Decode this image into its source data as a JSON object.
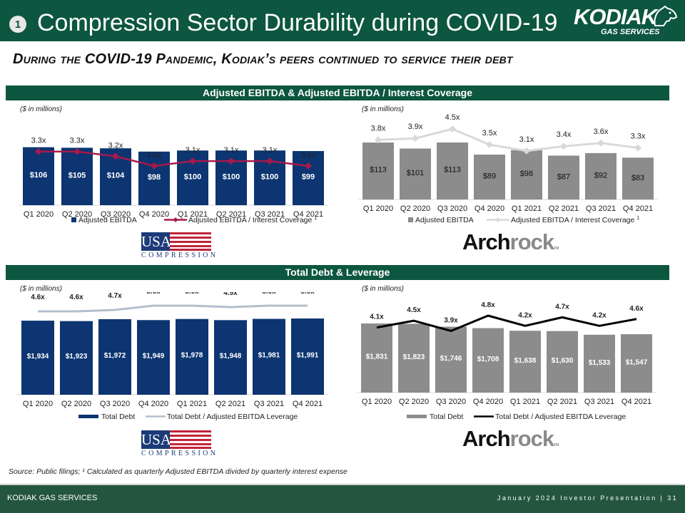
{
  "header": {
    "section_number": "1",
    "title": "Compression Sector Durability during COVID-19",
    "logo_main": "KODIAK",
    "logo_sub": "GAS SERVICES"
  },
  "subtitle": "During the COVID-19 Pandemic, Kodiak’s peers continued to service their debt",
  "sections": {
    "ebitda_header": "Adjusted EBITDA & Adjusted EBITDA / Interest Coverage",
    "debt_header": "Total Debt & Leverage"
  },
  "units_label": "($ in millions)",
  "brands": {
    "usa_box": "USA",
    "usa_sub": "COMPRESSION",
    "archrock_a": "Arch",
    "archrock_b": "rock",
    "archrock_tm": "TM"
  },
  "colors": {
    "green": "#0d5640",
    "navy": "#0c3571",
    "crimson": "#a8194a",
    "gray_bar": "#8c8c8c",
    "light_line": "#d9d9d9",
    "steel_line": "#b4bfce",
    "black_line": "#000000"
  },
  "chart_data": [
    {
      "id": "usac_ebitda",
      "type": "bar",
      "company": "USA Compression",
      "categories": [
        "Q1 2020",
        "Q2 2020",
        "Q3 2020",
        "Q4 2020",
        "Q1 2021",
        "Q2 2021",
        "Q3 2021",
        "Q4 2021"
      ],
      "series": [
        {
          "name": "Adjusted EBITDA",
          "kind": "bar",
          "values": [
            106,
            105,
            104,
            98,
            100,
            100,
            100,
            99
          ],
          "labels": [
            "$106",
            "$105",
            "$104",
            "$98",
            "$100",
            "$100",
            "$100",
            "$99"
          ]
        },
        {
          "name": "Adjusted EBITDA / Interest Coverage",
          "superscript": "1",
          "kind": "line",
          "values": [
            3.3,
            3.3,
            3.2,
            3.0,
            3.1,
            3.1,
            3.1,
            3.0
          ],
          "labels": [
            "3.3x",
            "3.3x",
            "3.2x",
            "3.0x",
            "3.1x",
            "3.1x",
            "3.1x",
            "3.0x"
          ]
        }
      ],
      "ylabel": "($ in millions)",
      "legend": "bottom"
    },
    {
      "id": "archrock_ebitda",
      "type": "bar",
      "company": "Archrock",
      "categories": [
        "Q1 2020",
        "Q2 2020",
        "Q3 2020",
        "Q4 2020",
        "Q1 2021",
        "Q2 2021",
        "Q3 2021",
        "Q4 2021"
      ],
      "series": [
        {
          "name": "Adjusted EBITDA",
          "kind": "bar",
          "values": [
            113,
            101,
            113,
            89,
            98,
            87,
            92,
            83
          ],
          "labels": [
            "$113",
            "$101",
            "$113",
            "$89",
            "$98",
            "$87",
            "$92",
            "$83"
          ]
        },
        {
          "name": "Adjusted EBITDA / Interest Coverage",
          "superscript": "1",
          "kind": "line",
          "values": [
            3.8,
            3.9,
            4.5,
            3.5,
            3.1,
            3.4,
            3.6,
            3.3
          ],
          "labels": [
            "3.8x",
            "3.9x",
            "4.5x",
            "3.5x",
            "3.1x",
            "3.4x",
            "3.6x",
            "3.3x"
          ]
        }
      ],
      "ylabel": "($ in millions)",
      "legend": "bottom"
    },
    {
      "id": "usac_debt",
      "type": "bar",
      "company": "USA Compression",
      "categories": [
        "Q1 2020",
        "Q2 2020",
        "Q3 2020",
        "Q4 2020",
        "Q1 2021",
        "Q2 2021",
        "Q3 2021",
        "Q4 2021"
      ],
      "series": [
        {
          "name": "Total Debt",
          "kind": "bar",
          "values": [
            1934,
            1923,
            1972,
            1949,
            1978,
            1948,
            1981,
            1991
          ],
          "labels": [
            "$1,934",
            "$1,923",
            "$1,972",
            "$1,949",
            "$1,978",
            "$1,948",
            "$1,981",
            "$1,991"
          ]
        },
        {
          "name": "Total Debt / Adjusted EBITDA Leverage",
          "kind": "line",
          "values": [
            4.6,
            4.6,
            4.7,
            5.0,
            5.0,
            4.9,
            5.0,
            5.0
          ],
          "labels": [
            "4.6x",
            "4.6x",
            "4.7x",
            "5.0x",
            "5.0x",
            "4.9x",
            "5.0x",
            "5.0x"
          ]
        }
      ],
      "ylabel": "($ in millions)",
      "legend": "bottom"
    },
    {
      "id": "archrock_debt",
      "type": "bar",
      "company": "Archrock",
      "categories": [
        "Q1 2020",
        "Q2 2020",
        "Q3 2020",
        "Q4 2020",
        "Q1 2021",
        "Q2 2021",
        "Q3 2021",
        "Q4 2021"
      ],
      "series": [
        {
          "name": "Total Debt",
          "kind": "bar",
          "values": [
            1831,
            1823,
            1746,
            1708,
            1638,
            1630,
            1533,
            1547
          ],
          "labels": [
            "$1,831",
            "$1,823",
            "$1,746",
            "$1,708",
            "$1,638",
            "$1,630",
            "$1,533",
            "$1,547"
          ]
        },
        {
          "name": "Total Debt / Adjusted EBITDA Leverage",
          "kind": "line",
          "values": [
            4.1,
            4.5,
            3.9,
            4.8,
            4.2,
            4.7,
            4.2,
            4.6
          ],
          "labels": [
            "4.1x",
            "4.5x",
            "3.9x",
            "4.8x",
            "4.2x",
            "4.7x",
            "4.2x",
            "4.6x"
          ]
        }
      ],
      "ylabel": "($ in millions)",
      "legend": "bottom"
    }
  ],
  "source_note": "Source: Public filings; ¹ Calculated as quarterly Adjusted EBITDA divided by quarterly interest expense",
  "footer": {
    "company": "KODIAK GAS SERVICES",
    "presentation": "January 2024 Investor Presentation",
    "separator": "|",
    "page": "31"
  }
}
